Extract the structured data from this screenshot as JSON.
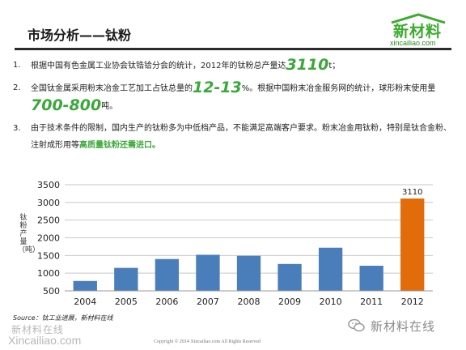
{
  "header": {
    "title": "市场分析——钛粉",
    "logo_name": "新材料",
    "logo_url": "xincailiao.com"
  },
  "bullets": [
    {
      "num": "1.",
      "pre": "根据中国有色金属工业协会钛锆铪分会的统计，2012年的钛粉总产量达",
      "big": "3110",
      "post": "t；"
    },
    {
      "num": "2.",
      "pre": "全国钛金属采用粉末冶金工艺加工占钛总量的",
      "big": "12-13",
      "mid": "%。根据中国粉末冶金服务网的统计，球形粉末使用量",
      "big2": "700-800",
      "post": "吨。"
    },
    {
      "num": "3.",
      "pre": "由于技术条件的限制，国内生产的钛粉多为中低档产品，不能满足高端客户要求。粉末冶金用钛粉，特别是钛合金粉、注射成形用等",
      "hl": "高质量钛粉还需进口。"
    }
  ],
  "footer": {
    "source": "Source：钛工业进展，新材料在线",
    "watermark_cn": "新材料在线",
    "watermark_url": "Xincailiao.com",
    "copyright": "Copyright © 2014   Xincailiao.com   All Rights Reserved",
    "wechat_name": "新材料在线"
  },
  "colors": {
    "bar": "#4a7ebb",
    "highlight_bar": "#e36c0a",
    "accent_green": "#3aa838"
  },
  "chart_data": {
    "type": "bar",
    "categories": [
      "2004",
      "2005",
      "2006",
      "2007",
      "2008",
      "2009",
      "2010",
      "2011",
      "2012"
    ],
    "values": [
      780,
      1150,
      1400,
      1520,
      1490,
      1260,
      1720,
      1210,
      3110
    ],
    "data_labels": {
      "2012": "3110"
    },
    "highlight_category": "2012",
    "ylabel": "钛粉产量（吨）",
    "yticks": [
      500,
      1000,
      1500,
      2000,
      2500,
      3000,
      3500
    ],
    "ylim": [
      500,
      3500
    ],
    "grid": true
  }
}
